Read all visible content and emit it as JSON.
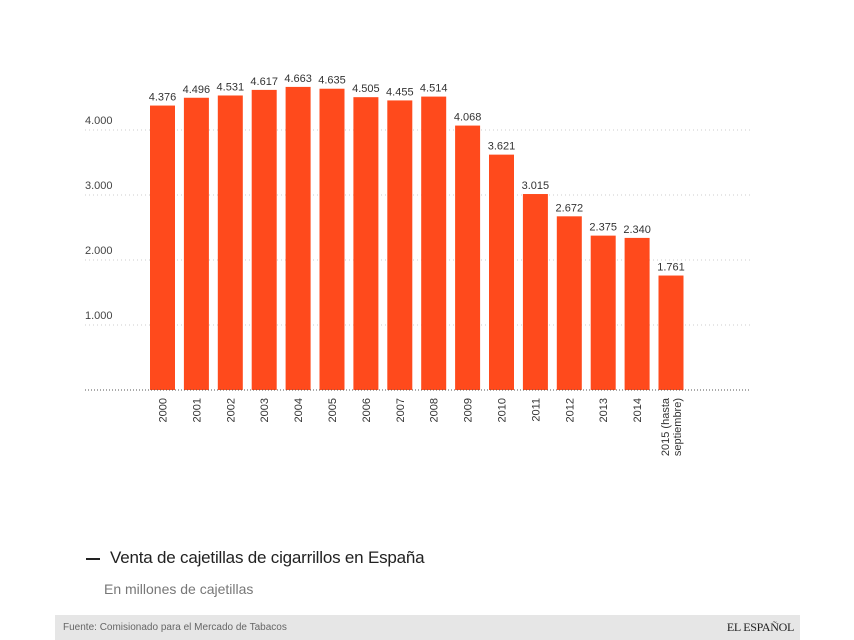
{
  "chart_data": {
    "type": "bar",
    "title": "Venta de cajetillas de cigarrillos en España",
    "subtitle": "En millones de cajetillas",
    "categories": [
      "2000",
      "2001",
      "2002",
      "2003",
      "2004",
      "2005",
      "2006",
      "2007",
      "2008",
      "2009",
      "2010",
      "2011",
      "2012",
      "2013",
      "2014",
      "2015 (hasta septiembre)"
    ],
    "values": [
      4376,
      4496,
      4531,
      4617,
      4663,
      4635,
      4505,
      4455,
      4514,
      4068,
      3621,
      3015,
      2672,
      2375,
      2340,
      1761
    ],
    "value_labels": [
      "4.376",
      "4.496",
      "4.531",
      "4.617",
      "4.663",
      "4.635",
      "4.505",
      "4.455",
      "4.514",
      "4.068",
      "3.621",
      "3.015",
      "2.672",
      "2.375",
      "2.340",
      "1.761"
    ],
    "yticks": [
      1000,
      2000,
      3000,
      4000
    ],
    "ytick_labels": [
      "1.000",
      "2.000",
      "3.000",
      "4.000"
    ],
    "ylim": [
      0,
      5000
    ],
    "grid": true,
    "bar_color": "#ff4a1c",
    "xlabel": "",
    "ylabel": ""
  },
  "footer": {
    "source": "Fuente: Comisionado para el Mercado de Tabacos",
    "logo": "EL ESPAÑOL"
  }
}
